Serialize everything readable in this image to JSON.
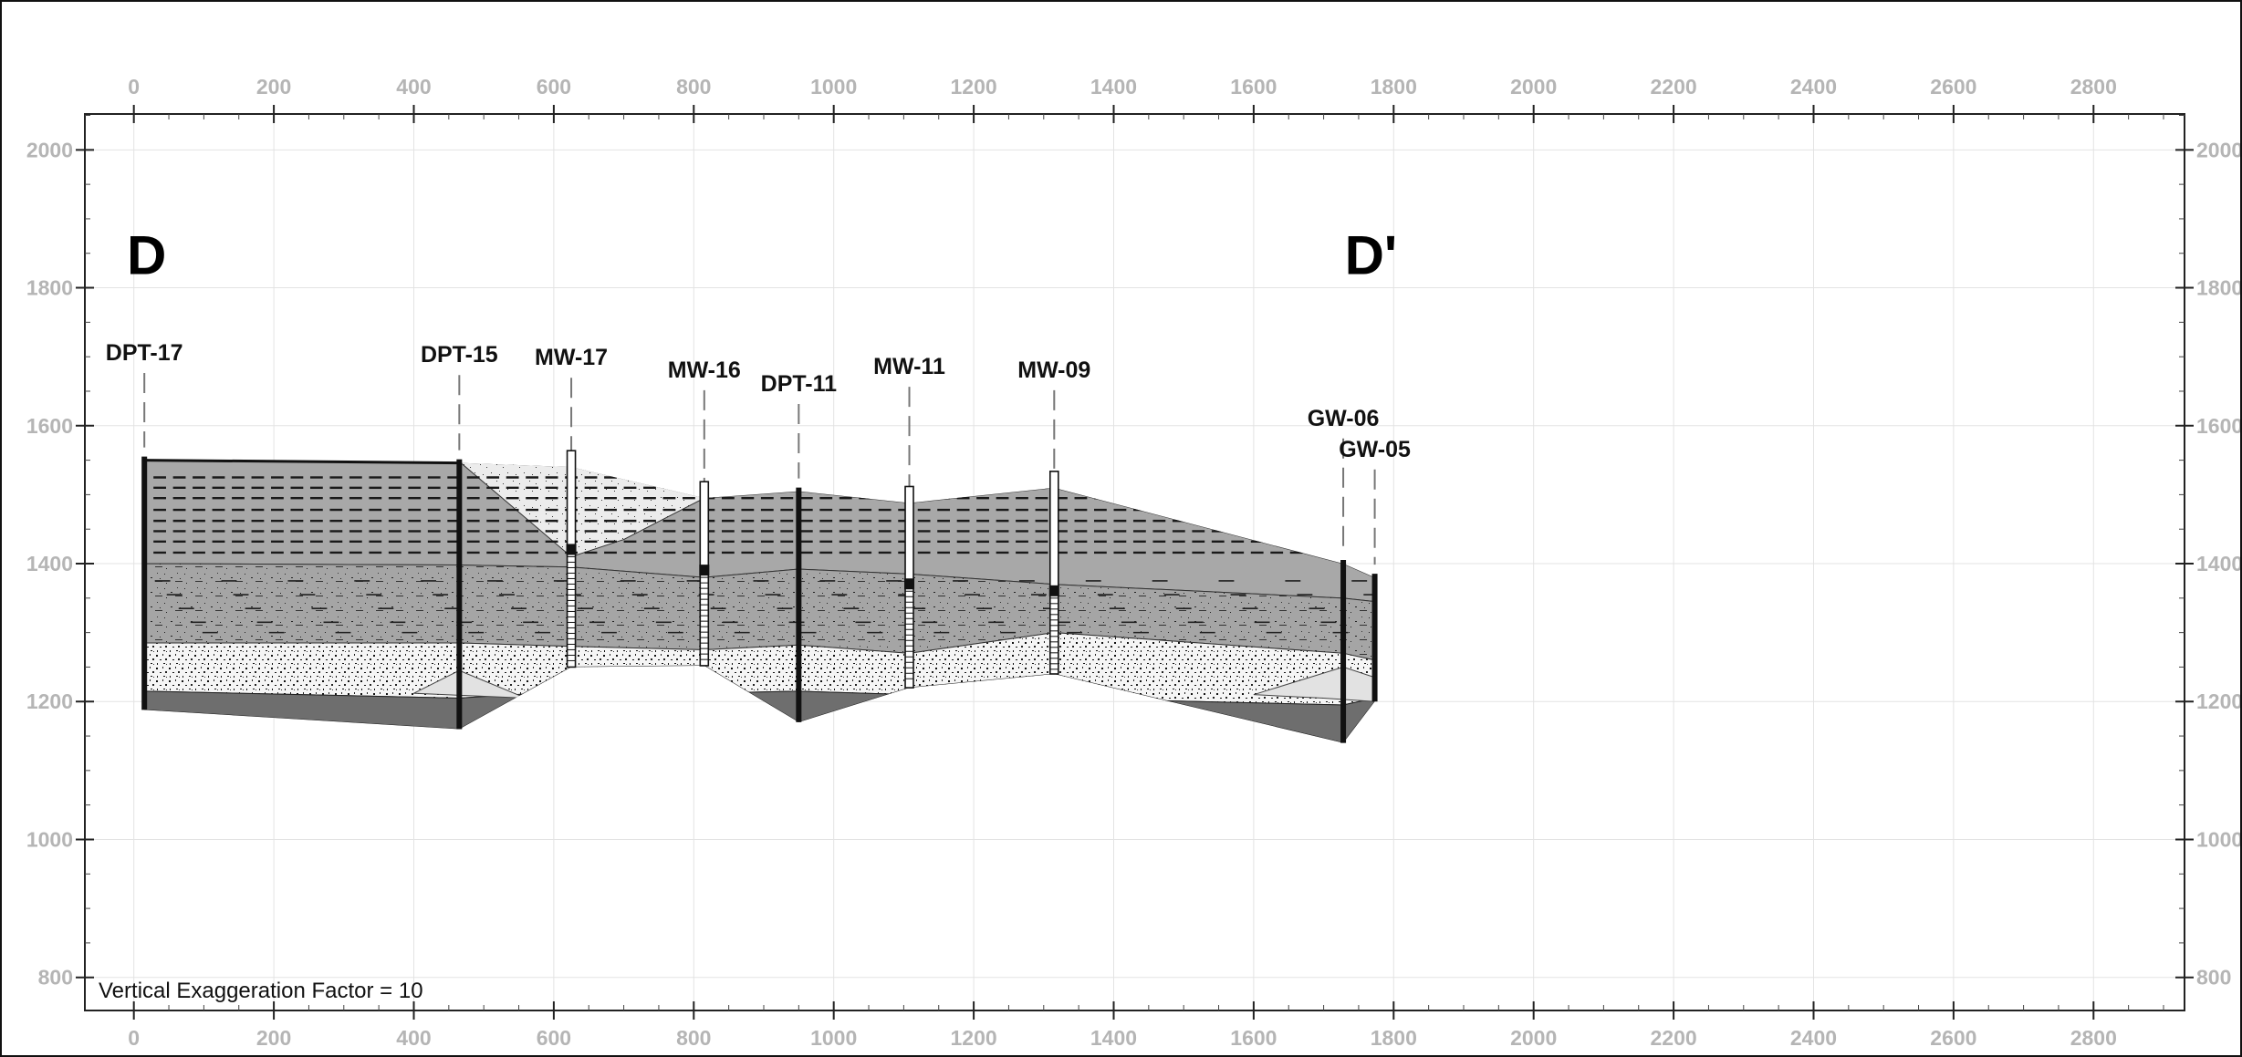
{
  "section": {
    "start_label": "D",
    "end_label": "D'",
    "note": "Vertical Exaggeration Factor = 10"
  },
  "axes": {
    "x_range": [
      -70,
      2930
    ],
    "y_range": [
      752,
      2052
    ],
    "x_ticks": [
      0,
      200,
      400,
      600,
      800,
      1000,
      1200,
      1400,
      1600,
      1800,
      2000,
      2200,
      2400,
      2600,
      2800
    ],
    "y_ticks": [
      800,
      1000,
      1200,
      1400,
      1600,
      1800,
      2000
    ],
    "grid": true,
    "tick_color": "#b5b5b5"
  },
  "wells": [
    {
      "name": "DPT-17",
      "distance": 15,
      "label_elevation": 1695,
      "ground": 1550,
      "bottom": 1188
    },
    {
      "name": "DPT-15",
      "distance": 465,
      "label_elevation": 1692,
      "ground": 1546,
      "bottom": 1160
    },
    {
      "name": "MW-17",
      "distance": 625,
      "label_elevation": 1688,
      "ground": 1540,
      "bottom": 1250,
      "screen_top": 1410
    },
    {
      "name": "MW-16",
      "distance": 815,
      "label_elevation": 1670,
      "ground": 1495,
      "bottom": 1252,
      "screen_top": 1380
    },
    {
      "name": "DPT-11",
      "distance": 950,
      "label_elevation": 1650,
      "ground": 1505,
      "bottom": 1170
    },
    {
      "name": "MW-11",
      "distance": 1108,
      "label_elevation": 1675,
      "ground": 1488,
      "bottom": 1220,
      "screen_top": 1360
    },
    {
      "name": "MW-09",
      "distance": 1315,
      "label_elevation": 1670,
      "ground": 1510,
      "bottom": 1240,
      "screen_top": 1350
    },
    {
      "name": "GW-06",
      "distance": 1728,
      "label_elevation": 1600,
      "ground": 1400,
      "bottom": 1140
    },
    {
      "name": "GW-05",
      "distance": 1773,
      "label_elevation": 1555,
      "ground": 1380,
      "bottom": 1200
    }
  ],
  "colors": {
    "clay": "#a8a8a8",
    "sand": "#f3f3f3",
    "lens": "#e2e2e2",
    "bedrock": "#6e6e6e",
    "grid": "#e3e3e3",
    "frame": "#222222"
  }
}
